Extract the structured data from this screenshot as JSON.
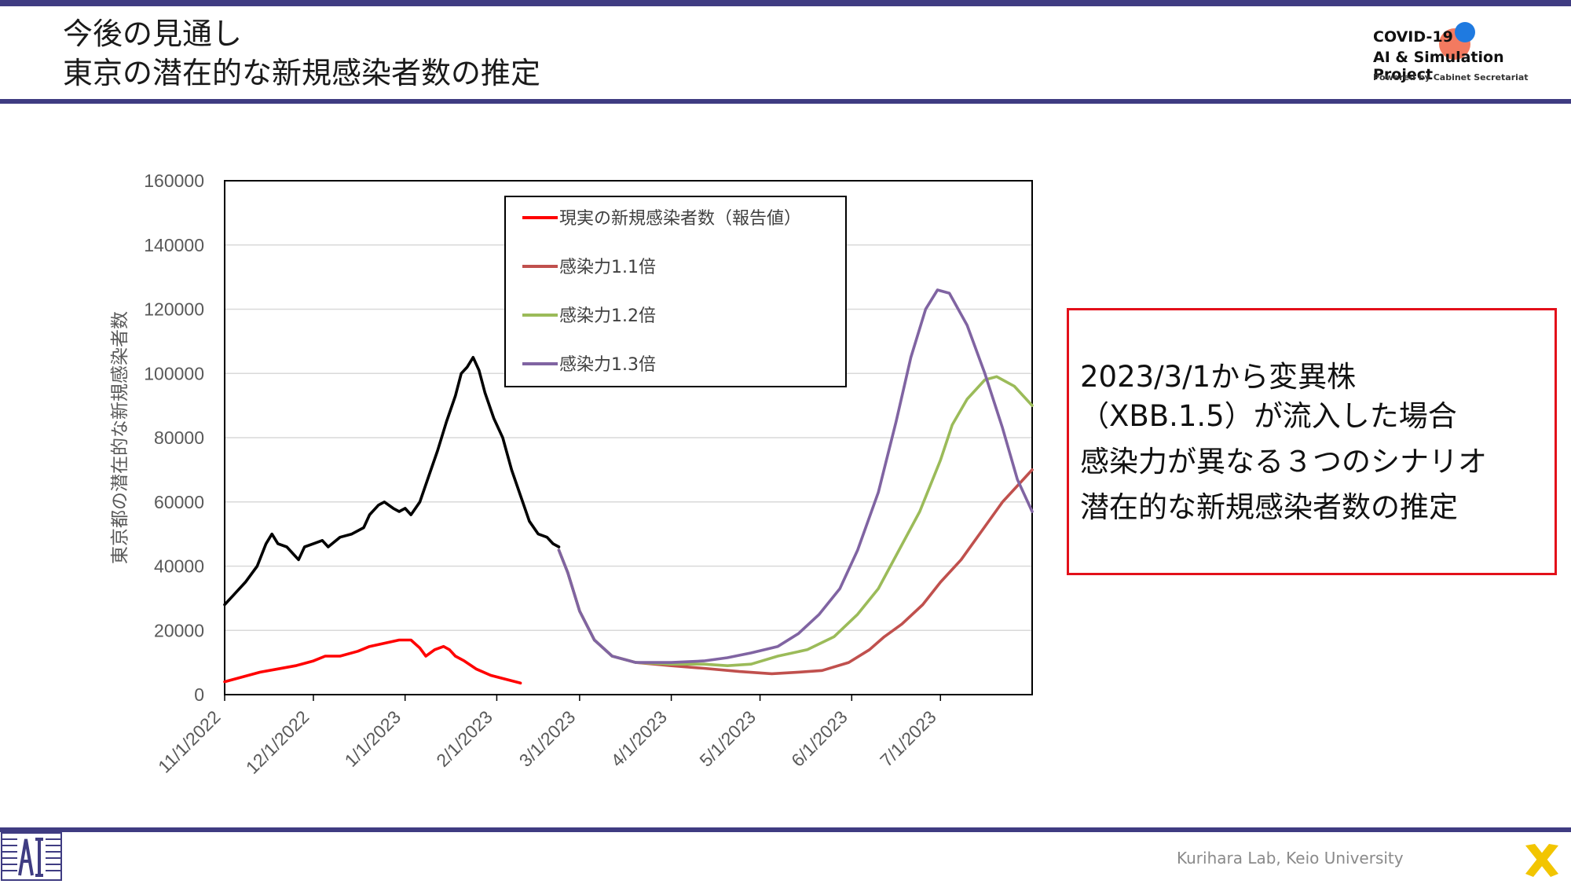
{
  "header": {
    "title_line1": "今後の見通し",
    "title_line2": "東京の潜在的な新規感染者数の推定"
  },
  "logo": {
    "line1": "COVID-19",
    "line2": "AI & Simulation Project",
    "line3": "Powered by Cabinet Secretariat"
  },
  "colors": {
    "band": "#3f3c82",
    "observed_past": "#000000",
    "reported": "#ff0000",
    "scenario_1_1": "#c0504d",
    "scenario_1_2": "#9bbb59",
    "scenario_1_3": "#8064a2",
    "callout_border": "#e3101a"
  },
  "callout": {
    "lines": [
      "2023/3/1から変異株",
      "（XBB.1.5）が流入した場合",
      "感染力が異なる３つのシナリオ",
      "潜在的な新規感染者数の推定"
    ]
  },
  "footer": {
    "text": "Kurihara Lab, Keio University"
  },
  "chart_data": {
    "type": "line",
    "ylabel": "東京都の潜在的な新規感染者数",
    "ylim": [
      0,
      160000
    ],
    "yticks": [
      "0",
      "20000",
      "40000",
      "60000",
      "80000",
      "100000",
      "120000",
      "140000",
      "160000"
    ],
    "xlim": [
      "2022-11-01",
      "2023-08-01"
    ],
    "xticks": [
      "11/1/2022",
      "12/1/2022",
      "1/1/2023",
      "2/1/2023",
      "3/1/2023",
      "4/1/2023",
      "5/1/2023",
      "6/1/2023",
      "7/1/2023"
    ],
    "grid": "horizontal",
    "legend_position": "top-center",
    "series": [
      {
        "name": "",
        "color_key": "observed_past",
        "points": [
          [
            "2022-11-01",
            28000
          ],
          [
            "2022-11-04",
            31000
          ],
          [
            "2022-11-08",
            35000
          ],
          [
            "2022-11-12",
            40000
          ],
          [
            "2022-11-15",
            47000
          ],
          [
            "2022-11-17",
            50000
          ],
          [
            "2022-11-19",
            47000
          ],
          [
            "2022-11-22",
            46000
          ],
          [
            "2022-11-26",
            42000
          ],
          [
            "2022-11-28",
            46000
          ],
          [
            "2022-12-01",
            47000
          ],
          [
            "2022-12-04",
            48000
          ],
          [
            "2022-12-06",
            46000
          ],
          [
            "2022-12-10",
            49000
          ],
          [
            "2022-12-14",
            50000
          ],
          [
            "2022-12-18",
            52000
          ],
          [
            "2022-12-20",
            56000
          ],
          [
            "2022-12-23",
            59000
          ],
          [
            "2022-12-25",
            60000
          ],
          [
            "2022-12-28",
            58000
          ],
          [
            "2022-12-30",
            57000
          ],
          [
            "2023-01-01",
            58000
          ],
          [
            "2023-01-03",
            56000
          ],
          [
            "2023-01-06",
            60000
          ],
          [
            "2023-01-09",
            68000
          ],
          [
            "2023-01-12",
            76000
          ],
          [
            "2023-01-15",
            85000
          ],
          [
            "2023-01-18",
            93000
          ],
          [
            "2023-01-20",
            100000
          ],
          [
            "2023-01-22",
            102000
          ],
          [
            "2023-01-24",
            105000
          ],
          [
            "2023-01-26",
            101000
          ],
          [
            "2023-01-28",
            94000
          ],
          [
            "2023-01-31",
            86000
          ],
          [
            "2023-02-03",
            80000
          ],
          [
            "2023-02-06",
            70000
          ],
          [
            "2023-02-09",
            62000
          ],
          [
            "2023-02-12",
            54000
          ],
          [
            "2023-02-15",
            50000
          ],
          [
            "2023-02-18",
            49000
          ],
          [
            "2023-02-20",
            47000
          ],
          [
            "2023-02-22",
            46000
          ]
        ]
      },
      {
        "name": "現実の新規感染者数（報告値）",
        "color_key": "reported",
        "points": [
          [
            "2022-11-01",
            4000
          ],
          [
            "2022-11-07",
            5500
          ],
          [
            "2022-11-13",
            7000
          ],
          [
            "2022-11-19",
            8000
          ],
          [
            "2022-11-25",
            9000
          ],
          [
            "2022-12-01",
            10500
          ],
          [
            "2022-12-05",
            12000
          ],
          [
            "2022-12-10",
            12000
          ],
          [
            "2022-12-16",
            13500
          ],
          [
            "2022-12-20",
            15000
          ],
          [
            "2022-12-25",
            16000
          ],
          [
            "2022-12-30",
            17000
          ],
          [
            "2023-01-03",
            17000
          ],
          [
            "2023-01-06",
            14500
          ],
          [
            "2023-01-08",
            12000
          ],
          [
            "2023-01-11",
            14000
          ],
          [
            "2023-01-14",
            15000
          ],
          [
            "2023-01-16",
            14000
          ],
          [
            "2023-01-18",
            12000
          ],
          [
            "2023-01-21",
            10500
          ],
          [
            "2023-01-25",
            8000
          ],
          [
            "2023-01-30",
            6000
          ],
          [
            "2023-02-04",
            4800
          ],
          [
            "2023-02-09",
            3600
          ]
        ]
      },
      {
        "name": "感染力1.1倍",
        "color_key": "scenario_1_1",
        "points": [
          [
            "2023-02-22",
            45000
          ],
          [
            "2023-02-25",
            38000
          ],
          [
            "2023-03-01",
            26000
          ],
          [
            "2023-03-06",
            17000
          ],
          [
            "2023-03-12",
            12000
          ],
          [
            "2023-03-20",
            10000
          ],
          [
            "2023-04-01",
            9000
          ],
          [
            "2023-04-12",
            8200
          ],
          [
            "2023-04-24",
            7200
          ],
          [
            "2023-05-05",
            6500
          ],
          [
            "2023-05-14",
            7000
          ],
          [
            "2023-05-22",
            7500
          ],
          [
            "2023-05-31",
            10000
          ],
          [
            "2023-06-07",
            14000
          ],
          [
            "2023-06-12",
            18000
          ],
          [
            "2023-06-18",
            22000
          ],
          [
            "2023-06-25",
            28000
          ],
          [
            "2023-07-01",
            35000
          ],
          [
            "2023-07-08",
            42000
          ],
          [
            "2023-07-15",
            51000
          ],
          [
            "2023-07-22",
            60000
          ],
          [
            "2023-08-01",
            70000
          ]
        ]
      },
      {
        "name": "感染力1.2倍",
        "color_key": "scenario_1_2",
        "points": [
          [
            "2023-02-22",
            45000
          ],
          [
            "2023-02-25",
            38000
          ],
          [
            "2023-03-01",
            26000
          ],
          [
            "2023-03-06",
            17000
          ],
          [
            "2023-03-12",
            12000
          ],
          [
            "2023-03-20",
            10000
          ],
          [
            "2023-04-01",
            9500
          ],
          [
            "2023-04-12",
            9500
          ],
          [
            "2023-04-20",
            9000
          ],
          [
            "2023-04-28",
            9500
          ],
          [
            "2023-05-07",
            12000
          ],
          [
            "2023-05-17",
            14000
          ],
          [
            "2023-05-26",
            18000
          ],
          [
            "2023-06-03",
            25000
          ],
          [
            "2023-06-10",
            33000
          ],
          [
            "2023-06-17",
            45000
          ],
          [
            "2023-06-24",
            57000
          ],
          [
            "2023-07-01",
            73000
          ],
          [
            "2023-07-05",
            84000
          ],
          [
            "2023-07-10",
            92000
          ],
          [
            "2023-07-16",
            98000
          ],
          [
            "2023-07-20",
            99000
          ],
          [
            "2023-07-26",
            96000
          ],
          [
            "2023-08-01",
            90000
          ]
        ]
      },
      {
        "name": "感染力1.3倍",
        "color_key": "scenario_1_3",
        "points": [
          [
            "2023-02-22",
            45000
          ],
          [
            "2023-02-25",
            38000
          ],
          [
            "2023-03-01",
            26000
          ],
          [
            "2023-03-06",
            17000
          ],
          [
            "2023-03-12",
            12000
          ],
          [
            "2023-03-20",
            10000
          ],
          [
            "2023-04-01",
            10000
          ],
          [
            "2023-04-12",
            10500
          ],
          [
            "2023-04-20",
            11500
          ],
          [
            "2023-04-28",
            13000
          ],
          [
            "2023-05-07",
            15000
          ],
          [
            "2023-05-14",
            19000
          ],
          [
            "2023-05-21",
            25000
          ],
          [
            "2023-05-28",
            33000
          ],
          [
            "2023-06-03",
            45000
          ],
          [
            "2023-06-10",
            63000
          ],
          [
            "2023-06-16",
            85000
          ],
          [
            "2023-06-21",
            105000
          ],
          [
            "2023-06-26",
            120000
          ],
          [
            "2023-06-30",
            126000
          ],
          [
            "2023-07-04",
            125000
          ],
          [
            "2023-07-10",
            115000
          ],
          [
            "2023-07-16",
            100000
          ],
          [
            "2023-07-22",
            83000
          ],
          [
            "2023-07-27",
            67000
          ],
          [
            "2023-08-01",
            57000
          ]
        ]
      }
    ]
  }
}
